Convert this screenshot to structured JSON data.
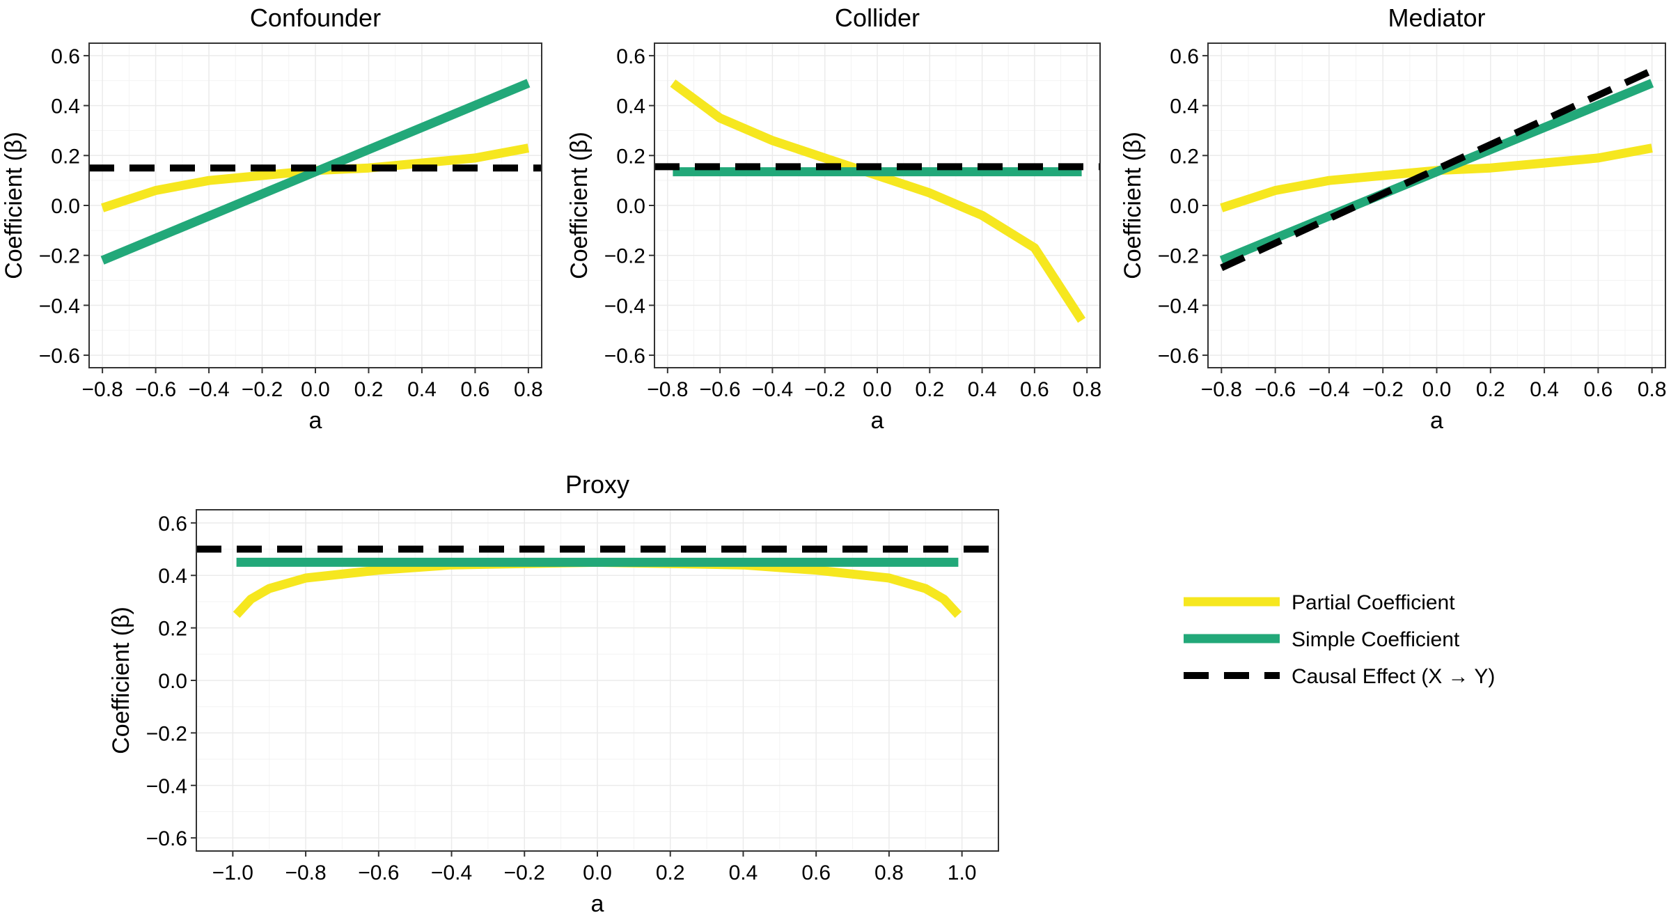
{
  "chart_data": [
    {
      "type": "line",
      "title": "Confounder",
      "xlabel": "a",
      "ylabel": "Coefficient (β)",
      "xlim": [
        -0.85,
        0.85
      ],
      "ylim": [
        -0.65,
        0.65
      ],
      "xticks": [
        -0.8,
        -0.6,
        -0.4,
        -0.2,
        0.0,
        0.2,
        0.4,
        0.6,
        0.8
      ],
      "xtick_labels": [
        "−0.8",
        "−0.6",
        "−0.4",
        "−0.2",
        "0.0",
        "0.2",
        "0.4",
        "0.6",
        "0.8"
      ],
      "yticks": [
        -0.6,
        -0.4,
        -0.2,
        0.0,
        0.2,
        0.4,
        0.6
      ],
      "ytick_labels": [
        "−0.6",
        "−0.4",
        "−0.2",
        "0.0",
        "0.2",
        "0.4",
        "0.6"
      ],
      "grid": true,
      "series": [
        {
          "name": "Partial Coefficient",
          "x": [
            -0.8,
            -0.6,
            -0.4,
            -0.2,
            0.0,
            0.2,
            0.4,
            0.6,
            0.8
          ],
          "values": [
            -0.01,
            0.06,
            0.1,
            0.12,
            0.14,
            0.15,
            0.17,
            0.19,
            0.23
          ]
        },
        {
          "name": "Simple Coefficient",
          "x": [
            -0.8,
            0.8
          ],
          "values": [
            -0.22,
            0.49
          ]
        },
        {
          "name": "Causal Effect (X → Y)",
          "x": [
            -0.85,
            0.85
          ],
          "values": [
            0.15,
            0.15
          ]
        }
      ]
    },
    {
      "type": "line",
      "title": "Collider",
      "xlabel": "a",
      "ylabel": "Coefficient (β)",
      "xlim": [
        -0.85,
        0.85
      ],
      "ylim": [
        -0.65,
        0.65
      ],
      "xticks": [
        -0.8,
        -0.6,
        -0.4,
        -0.2,
        0.0,
        0.2,
        0.4,
        0.6,
        0.8
      ],
      "xtick_labels": [
        "−0.8",
        "−0.6",
        "−0.4",
        "−0.2",
        "0.0",
        "0.2",
        "0.4",
        "0.6",
        "0.8"
      ],
      "yticks": [
        -0.6,
        -0.4,
        -0.2,
        0.0,
        0.2,
        0.4,
        0.6
      ],
      "ytick_labels": [
        "−0.6",
        "−0.4",
        "−0.2",
        "0.0",
        "0.2",
        "0.4",
        "0.6"
      ],
      "grid": true,
      "series": [
        {
          "name": "Partial Coefficient",
          "x": [
            -0.78,
            -0.6,
            -0.4,
            -0.2,
            0.0,
            0.2,
            0.4,
            0.6,
            0.78
          ],
          "values": [
            0.49,
            0.35,
            0.26,
            0.19,
            0.12,
            0.05,
            -0.04,
            -0.17,
            -0.46
          ]
        },
        {
          "name": "Simple Coefficient",
          "x": [
            -0.78,
            0.78
          ],
          "values": [
            0.135,
            0.135
          ]
        },
        {
          "name": "Causal Effect (X → Y)",
          "x": [
            -0.85,
            0.85
          ],
          "values": [
            0.155,
            0.155
          ]
        }
      ]
    },
    {
      "type": "line",
      "title": "Mediator",
      "xlabel": "a",
      "ylabel": "Coefficient (β)",
      "xlim": [
        -0.85,
        0.85
      ],
      "ylim": [
        -0.65,
        0.65
      ],
      "xticks": [
        -0.8,
        -0.6,
        -0.4,
        -0.2,
        0.0,
        0.2,
        0.4,
        0.6,
        0.8
      ],
      "xtick_labels": [
        "−0.8",
        "−0.6",
        "−0.4",
        "−0.2",
        "0.0",
        "0.2",
        "0.4",
        "0.6",
        "0.8"
      ],
      "yticks": [
        -0.6,
        -0.4,
        -0.2,
        0.0,
        0.2,
        0.4,
        0.6
      ],
      "ytick_labels": [
        "−0.6",
        "−0.4",
        "−0.2",
        "0.0",
        "0.2",
        "0.4",
        "0.6"
      ],
      "grid": true,
      "series": [
        {
          "name": "Partial Coefficient",
          "x": [
            -0.8,
            -0.6,
            -0.4,
            -0.2,
            0.0,
            0.2,
            0.4,
            0.6,
            0.8
          ],
          "values": [
            -0.01,
            0.06,
            0.1,
            0.12,
            0.14,
            0.15,
            0.17,
            0.19,
            0.23
          ]
        },
        {
          "name": "Simple Coefficient",
          "x": [
            -0.8,
            0.8
          ],
          "values": [
            -0.22,
            0.49
          ]
        },
        {
          "name": "Causal Effect (X → Y)",
          "x": [
            -0.8,
            0.8
          ],
          "values": [
            -0.25,
            0.54
          ]
        }
      ]
    },
    {
      "type": "line",
      "title": "Proxy",
      "xlabel": "a",
      "ylabel": "Coefficient (β)",
      "xlim": [
        -1.1,
        1.1
      ],
      "ylim": [
        -0.65,
        0.65
      ],
      "xticks": [
        -1.0,
        -0.8,
        -0.6,
        -0.4,
        -0.2,
        0.0,
        0.2,
        0.4,
        0.6,
        0.8,
        1.0
      ],
      "xtick_labels": [
        "−1.0",
        "−0.8",
        "−0.6",
        "−0.4",
        "−0.2",
        "0.0",
        "0.2",
        "0.4",
        "0.6",
        "0.8",
        "1.0"
      ],
      "yticks": [
        -0.6,
        -0.4,
        -0.2,
        0.0,
        0.2,
        0.4,
        0.6
      ],
      "ytick_labels": [
        "−0.6",
        "−0.4",
        "−0.2",
        "0.0",
        "0.2",
        "0.4",
        "0.6"
      ],
      "grid": true,
      "series": [
        {
          "name": "Partial Coefficient",
          "x": [
            -0.99,
            -0.95,
            -0.9,
            -0.8,
            -0.6,
            -0.4,
            -0.2,
            0.0,
            0.2,
            0.4,
            0.6,
            0.8,
            0.9,
            0.95,
            0.99
          ],
          "values": [
            0.25,
            0.31,
            0.35,
            0.39,
            0.42,
            0.44,
            0.445,
            0.45,
            0.445,
            0.44,
            0.42,
            0.39,
            0.35,
            0.31,
            0.25
          ]
        },
        {
          "name": "Simple Coefficient",
          "x": [
            -0.99,
            0.99
          ],
          "values": [
            0.45,
            0.45
          ]
        },
        {
          "name": "Causal Effect (X → Y)",
          "x": [
            -1.1,
            1.1
          ],
          "values": [
            0.5,
            0.5
          ]
        }
      ]
    }
  ],
  "legend": {
    "placement": "right",
    "items": [
      {
        "label": "Partial Coefficient",
        "color": "#f6e71f",
        "style": "solid"
      },
      {
        "label": "Simple Coefficient",
        "color": "#22a879",
        "style": "solid"
      },
      {
        "label": "Causal Effect (X → Y)",
        "color": "#000000",
        "style": "dashed"
      }
    ]
  },
  "colors": {
    "partial": "#f6e71f",
    "simple": "#22a879",
    "causal": "#000000",
    "grid": "#ebebeb",
    "frame": "#333333"
  }
}
